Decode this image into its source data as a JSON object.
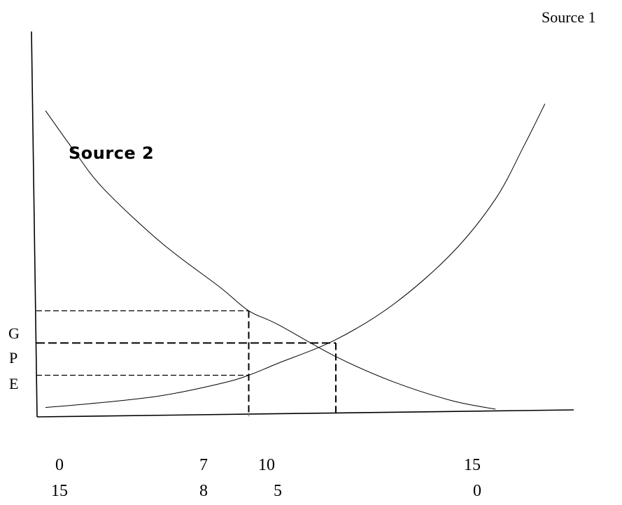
{
  "chart_data": {
    "type": "line",
    "annotations": [
      {
        "id": "source-1",
        "text": "Source 1"
      },
      {
        "id": "source-2",
        "text": "Source 2"
      }
    ],
    "y_labels": [
      "G",
      "P",
      "E"
    ],
    "x_tick_rows": [
      [
        "0",
        "7",
        "10",
        "15"
      ],
      [
        "15",
        "8",
        "5",
        "0"
      ]
    ],
    "x_ticks": [
      0,
      7,
      10,
      15
    ],
    "xlim": [
      0,
      17
    ],
    "series": [
      {
        "curve": "increasing",
        "x": [
          0,
          2,
          4,
          6,
          7,
          8,
          10,
          12,
          14,
          15.5,
          16.5,
          17.2
        ],
        "y": [
          0.05,
          0.2,
          0.4,
          0.75,
          1.0,
          1.35,
          2.05,
          3.1,
          4.6,
          6.2,
          7.8,
          9.0
        ]
      },
      {
        "curve": "decreasing",
        "x": [
          0,
          1,
          2,
          4,
          6,
          7,
          8,
          10,
          12,
          14,
          15.5
        ],
        "y": [
          8.8,
          7.6,
          6.5,
          4.9,
          3.6,
          2.9,
          2.5,
          1.55,
          0.8,
          0.25,
          0
        ]
      }
    ],
    "reference_lines": [
      {
        "x": 7,
        "y": 2.9,
        "label": "G"
      },
      {
        "x": 10,
        "y": 1.95,
        "label": "P"
      },
      {
        "x": 7,
        "y": 1.0,
        "label": "E"
      }
    ]
  }
}
